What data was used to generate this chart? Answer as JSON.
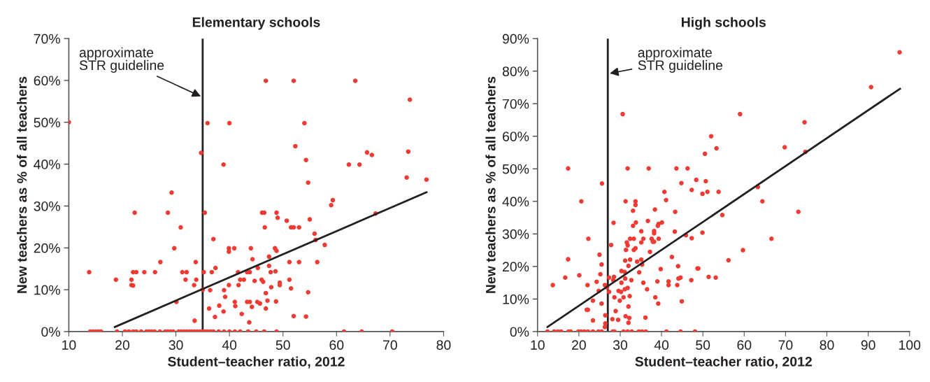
{
  "chart_data": [
    {
      "type": "scatter",
      "title": "Elementary schools",
      "xlabel": "Student–teacher ratio, 2012",
      "ylabel": "New teachers as % of all teachers",
      "xlim": [
        10,
        80
      ],
      "xticks": [
        10,
        20,
        30,
        40,
        50,
        60,
        70,
        80
      ],
      "ylim": [
        0,
        70
      ],
      "yticks": [
        {
          "value": 0,
          "label": "0%"
        },
        {
          "value": 10,
          "label": "10%"
        },
        {
          "value": 20,
          "label": "20%"
        },
        {
          "value": 30,
          "label": "30%"
        },
        {
          "value": 40,
          "label": "40%"
        },
        {
          "value": 50,
          "label": "50%"
        },
        {
          "value": 60,
          "label": "60%"
        },
        {
          "value": 70,
          "label": "70%"
        }
      ],
      "grid": false,
      "legend": false,
      "series": [
        {
          "marker": "circle",
          "color": "#ee3b33",
          "x": [
            10,
            13.8,
            18.8,
            21.7,
            21.7,
            22,
            22.3,
            22,
            22.6,
            24.1,
            26.1,
            27.1,
            28.5,
            29.2,
            29.7,
            30.1,
            30.9,
            31.2,
            32,
            31.8,
            33.4,
            33.7,
            33.8,
            33.5,
            34.7,
            35.2,
            35.4,
            35,
            35.9,
            36.2,
            36.4,
            36.7,
            37,
            37.4,
            37.3,
            38.1,
            38.9,
            38.9,
            39,
            39.2,
            39.9,
            40,
            39.9,
            39.9,
            40.9,
            41.6,
            41.7,
            42,
            42.7,
            41,
            41.1,
            42.3,
            43.3,
            43.8,
            43.7,
            43.3,
            43.8,
            44,
            44.3,
            44.2,
            44.7,
            45.3,
            45.2,
            45.7,
            46,
            46.3,
            46.1,
            46.5,
            46.6,
            46.8,
            46.8,
            46.8,
            52,
            63.5,
            73.7,
            54,
            52.3,
            54.3,
            62.3,
            64.3,
            65.7,
            66.6,
            73.4,
            73.1,
            76.8,
            54.7,
            59.3,
            59,
            67.3,
            48.8,
            49,
            50.7,
            51.5,
            52,
            53,
            55,
            55.9,
            56.1,
            57.8,
            48.5,
            48.8,
            47.4,
            47.4,
            47.7,
            48.6,
            51.2,
            53,
            56.4,
            51.2,
            49.4,
            49.4,
            47.8,
            51.5,
            54.7,
            47.1,
            48.7,
            52,
            54.3,
            14,
            14.5,
            15,
            15.5,
            16,
            19,
            20.5,
            21.2,
            22,
            22.6,
            23.5,
            24.5,
            25,
            25.5,
            26,
            27,
            28,
            28.5,
            29,
            29.5,
            30.5,
            31,
            31.5,
            32,
            32.5,
            33,
            33.5,
            34,
            34.5,
            35,
            35.5,
            36,
            36.5,
            37,
            38,
            39,
            40,
            41,
            42,
            43.5,
            45,
            46.5,
            48.8,
            61.4,
            64.7,
            70.4
          ],
          "values": [
            50,
            14.2,
            12.4,
            12.4,
            11.1,
            11,
            28.4,
            14.2,
            14.2,
            14.2,
            14.2,
            16.6,
            28.4,
            33.2,
            19.9,
            7.1,
            24.9,
            14.2,
            14.2,
            12.4,
            11.1,
            16.6,
            12.4,
            2.6,
            42.7,
            14.2,
            28.4,
            10,
            49.8,
            5.5,
            9.9,
            14.2,
            22.1,
            15.2,
            3.5,
            6.2,
            39.9,
            4.8,
            9.9,
            8.3,
            11.1,
            49.8,
            19.9,
            19.1,
            19.9,
            14.2,
            11.1,
            12.4,
            12.4,
            7.1,
            6.1,
            4.2,
            7.1,
            7.1,
            2.2,
            14.2,
            14.2,
            19.9,
            17.3,
            5.9,
            12.1,
            15.2,
            7.1,
            6.7,
            12.4,
            11.9,
            28.4,
            28.4,
            24.9,
            59.9,
            9.2,
            5.5,
            59.9,
            59.9,
            55.4,
            49.8,
            44.3,
            41,
            39.9,
            39.9,
            42.8,
            42.2,
            43,
            36.8,
            36.3,
            35.6,
            31.4,
            30.2,
            28.2,
            28.4,
            27.2,
            26.5,
            24.9,
            24.9,
            24.9,
            26.8,
            23.4,
            21.9,
            20.7,
            19.9,
            19.3,
            17.9,
            15.7,
            14.2,
            14.4,
            16.6,
            16.6,
            16.6,
            12.4,
            11.7,
            11.1,
            10.6,
            10.3,
            9.4,
            7.4,
            7.2,
            3.7,
            3.6,
            0,
            0,
            0,
            0,
            0,
            0,
            0,
            0,
            0,
            0,
            0,
            0,
            0,
            0,
            0,
            0,
            0,
            0,
            0,
            0,
            0,
            0,
            0,
            0,
            0,
            0,
            0,
            0,
            0,
            0,
            0,
            0,
            0,
            0,
            0,
            0,
            0,
            0,
            0,
            0,
            0,
            0,
            0,
            0,
            0,
            0
          ]
        },
        {
          "type": "line",
          "marker": "none",
          "color": "#231f20",
          "x": [
            18.6,
            76.8
          ],
          "values": [
            1.1,
            33.3
          ]
        }
      ],
      "ref_lines": [
        {
          "axis": "x",
          "value": 35,
          "label": "approximate\nSTR guideline",
          "color": "#231f20"
        }
      ]
    },
    {
      "type": "scatter",
      "title": "High schools",
      "xlabel": "Student–teacher ratio, 2012",
      "ylabel": "New teachers as % of all teachers",
      "xlim": [
        10,
        100
      ],
      "xticks": [
        10,
        20,
        30,
        40,
        50,
        60,
        70,
        80,
        90,
        100
      ],
      "ylim": [
        0,
        90
      ],
      "yticks": [
        {
          "value": 0,
          "label": "0%"
        },
        {
          "value": 10,
          "label": "10%"
        },
        {
          "value": 20,
          "label": "20%"
        },
        {
          "value": 30,
          "label": "30%"
        },
        {
          "value": 40,
          "label": "40%"
        },
        {
          "value": 50,
          "label": "50%"
        },
        {
          "value": 60,
          "label": "60%"
        },
        {
          "value": 70,
          "label": "70%"
        },
        {
          "value": 80,
          "label": "80%"
        },
        {
          "value": 90,
          "label": "90%"
        }
      ],
      "grid": false,
      "legend": false,
      "series": [
        {
          "marker": "circle",
          "color": "#ee3b33",
          "x": [
            30.6,
            17.4,
            31.8,
            36.9,
            43.6,
            46.3,
            25.6,
            48.4,
            44.8,
            47.3,
            40.7,
            41.1,
            20.6,
            31.3,
            33.7,
            33.7,
            33.1,
            38.4,
            43.3,
            28.4,
            33.1,
            33.8,
            36.7,
            39.3,
            40.1,
            39.1,
            38.2,
            38.2,
            35.1,
            22.3,
            32.4,
            33.3,
            35.6,
            37.6,
            39.3,
            43.2,
            45.9,
            47.3,
            37.9,
            38.2,
            35.1,
            31.6,
            31.8,
            27.8,
            33.7,
            33.3,
            31.4,
            37.2,
            25,
            17.4,
            31.2,
            32.4,
            34.1,
            35.1,
            25.5,
            32,
            35.3,
            42.5,
            44,
            48.7,
            39.8,
            20.1,
            16.7,
            25.2,
            27.3,
            28.3,
            30.3,
            31.1,
            34.6,
            24.3,
            28.5,
            30.3,
            31.2,
            32.7,
            35.6,
            39,
            41.7,
            41.7,
            44.1,
            44.6,
            43.8,
            47.2,
            13.7,
            22.1,
            26.3,
            24.8,
            26.8,
            27.3,
            31.8,
            31.1,
            29.6,
            30.2,
            28.6,
            29.9,
            30.8,
            32.3,
            36.5,
            38.5,
            39.2,
            44.9,
            23.4,
            25.5,
            21.9,
            22.2,
            28.9,
            32,
            23.4,
            28.1,
            29.5,
            31.3,
            32.2,
            32,
            36.1,
            26.4,
            26.4,
            26.3,
            12.4,
            14,
            14.9,
            15.7,
            17.5,
            18,
            19.9,
            20.5,
            21.3,
            22.2,
            23.4,
            24.7,
            25.5,
            28.2,
            28.6,
            30.8,
            31.8,
            32.8,
            34.5,
            35.3,
            36.2,
            41.2,
            44.6,
            48.1,
            97.6,
            90.7,
            59,
            74.6,
            52,
            53.3,
            50.5,
            69.8,
            74.8,
            50.7,
            49.9,
            51.1,
            53.8,
            63.3,
            64.4,
            54.7,
            73.1,
            49.9,
            66.6,
            59.7,
            56.2,
            48.9,
            51.4,
            53.1
          ],
          "values": [
            66.8,
            50.1,
            50.1,
            50.1,
            50.1,
            50.1,
            45.5,
            46.6,
            45.6,
            43.5,
            42.9,
            40.4,
            40,
            40,
            40,
            38.9,
            37.1,
            37.5,
            36.8,
            33.4,
            32.5,
            33.5,
            34,
            33.1,
            33.5,
            32.5,
            30.9,
            30.2,
            30.8,
            28.5,
            28.5,
            28.5,
            28.5,
            28.5,
            28.5,
            30.7,
            29.6,
            28.7,
            27.6,
            27.6,
            27.4,
            27.4,
            26.5,
            26.6,
            25.6,
            25.1,
            25.1,
            24.5,
            23.6,
            22.2,
            21.8,
            22.1,
            21.5,
            22.1,
            20.6,
            20.2,
            20.6,
            22.9,
            20.1,
            19.4,
            19.2,
            17.3,
            16.6,
            17.6,
            16.6,
            15.8,
            18.6,
            18.3,
            18.2,
            15.3,
            16.8,
            15,
            16.3,
            15.8,
            15,
            15.4,
            15.4,
            14.3,
            16.3,
            16.6,
            14.3,
            15.8,
            14.3,
            14.3,
            14.3,
            12.5,
            13.6,
            12.2,
            13.4,
            13,
            12.5,
            12.2,
            10.5,
            9.5,
            10.5,
            10.9,
            13,
            10.5,
            8.6,
            9.3,
            9.5,
            8.6,
            6.7,
            6.7,
            6.3,
            7.7,
            3.4,
            3.8,
            3.6,
            4.7,
            4.2,
            2.7,
            4.3,
            5,
            2.5,
            1.4,
            0,
            0,
            0,
            0,
            0,
            0,
            0,
            0,
            0,
            0,
            0,
            0,
            0,
            0,
            0,
            0,
            0,
            0,
            0,
            0,
            0,
            0,
            0,
            0,
            85.8,
            75.1,
            66.8,
            64.3,
            60,
            56.3,
            54.6,
            56.6,
            55.2,
            46.2,
            42.3,
            42.9,
            42.9,
            44.4,
            40,
            35.8,
            36.8,
            30.4,
            28.5,
            25,
            21.9,
            19.4,
            16.8,
            16.6
          ]
        },
        {
          "type": "line",
          "marker": "none",
          "color": "#231f20",
          "x": [
            12.4,
            97.7
          ],
          "values": [
            1.4,
            74.6
          ]
        }
      ],
      "ref_lines": [
        {
          "axis": "x",
          "value": 27,
          "label": "approximate\nSTR guideline",
          "color": "#231f20"
        }
      ]
    }
  ]
}
